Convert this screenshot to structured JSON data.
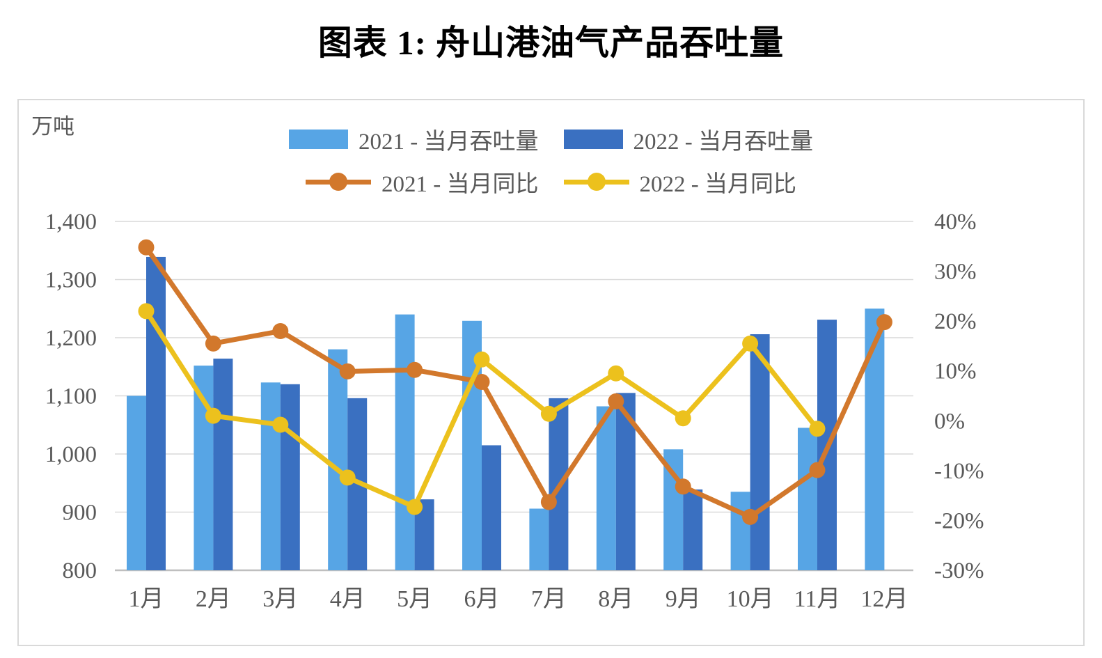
{
  "title": "图表 1: 舟山港油气产品吞吐量",
  "chart_data": {
    "type": "bar+line combo, dual axis",
    "title": "图表 1: 舟山港油气产品吞吐量",
    "unit_label": "万吨",
    "grid": true,
    "legend_position": "top-center",
    "categories": [
      "1月",
      "2月",
      "3月",
      "4月",
      "5月",
      "6月",
      "7月",
      "8月",
      "9月",
      "10月",
      "11月",
      "12月"
    ],
    "series": [
      {
        "name": "2021 - 当月吞吐量",
        "type": "bar",
        "axis": "left",
        "color": "#57A5E5",
        "values": [
          1100,
          1152,
          1123,
          1180,
          1240,
          1229,
          906,
          1082,
          1008,
          935,
          1045,
          1250
        ]
      },
      {
        "name": "2022 - 当月吞吐量",
        "type": "bar",
        "axis": "left",
        "color": "#3A70C1",
        "values": [
          1339,
          1164,
          1120,
          1096,
          922,
          1015,
          1096,
          1105,
          939,
          1206,
          1231,
          null
        ]
      },
      {
        "name": "2021 - 当月同比",
        "type": "line",
        "axis": "right",
        "color": "#D2782C",
        "values": [
          34.8,
          15.5,
          18.0,
          9.9,
          10.2,
          7.8,
          -16.3,
          3.9,
          -13.2,
          -19.3,
          -9.9,
          19.8
        ]
      },
      {
        "name": "2022 - 当月同比",
        "type": "line",
        "axis": "right",
        "color": "#ECC11D",
        "values": [
          22.0,
          1.0,
          -0.8,
          -11.4,
          -17.3,
          12.3,
          1.4,
          9.5,
          0.5,
          15.5,
          -1.6,
          null
        ]
      }
    ],
    "left_axis": {
      "min": 800,
      "max": 1400,
      "step": 100,
      "unit": "万吨",
      "tick_labels": [
        "1,400",
        "1,300",
        "1,200",
        "1,100",
        "1,000",
        "900",
        "800"
      ]
    },
    "right_axis": {
      "min": -30,
      "max": 40,
      "step": 10,
      "tick_labels": [
        "40%",
        "30%",
        "20%",
        "10%",
        "0%",
        "-10%",
        "-20%",
        "-30%"
      ]
    },
    "colors": {
      "gridline": "#D9D9D9",
      "axis_line": "#BFBFBF",
      "tick_text": "#595959",
      "title_text": "#000000",
      "frame_border": "#D9D9D9"
    }
  }
}
